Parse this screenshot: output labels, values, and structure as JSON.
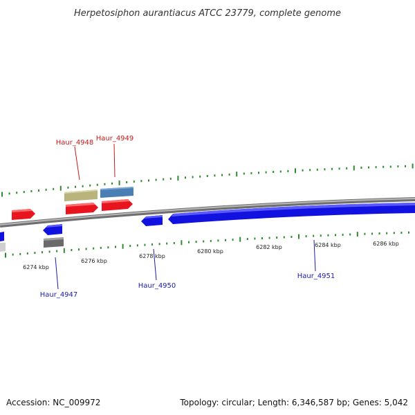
{
  "title": "Herpetosiphon aurantiacus ATCC 23779, complete genome",
  "footer": {
    "accession": "Accession: NC_009972",
    "summary": "Topology: circular; Length: 6,346,587 bp; Genes: 5,042"
  },
  "colors": {
    "backbone": "#8a8a8a",
    "tick": "#2e8b2e",
    "forward_gene": "#e8141e",
    "reverse_gene": "#1212e0",
    "gene_label_forward": "#c81818",
    "gene_label_reverse": "#1a1aa8",
    "feature_khaki": "#b8b47c",
    "feature_steelblue": "#4a7fb5",
    "feature_gray": "#6a6a6a",
    "feature_lightgray": "#cfcfcf"
  },
  "ticks": {
    "labels": [
      "6274 kbp",
      "6276 kbp",
      "6278 kbp",
      "6280 kbp",
      "6282 kbp",
      "6284 kbp",
      "6286 kbp"
    ]
  },
  "genes": {
    "labels": [
      "Haur_4948",
      "Haur_4949",
      "Haur_4947",
      "Haur_4950",
      "Haur_4951"
    ]
  }
}
